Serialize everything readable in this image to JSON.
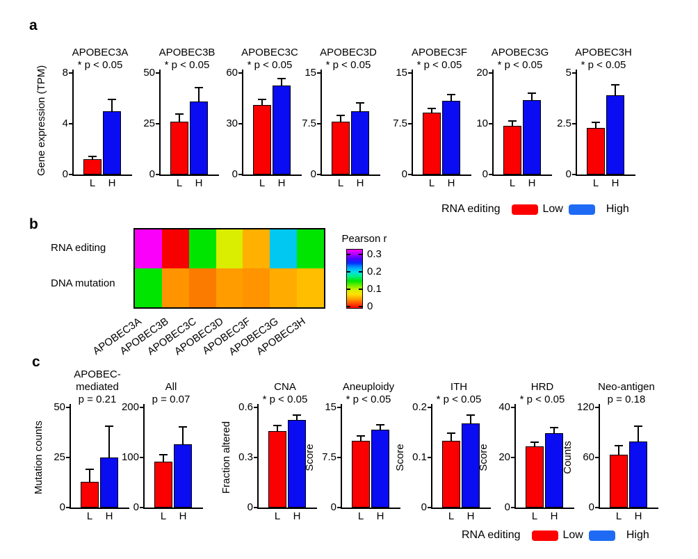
{
  "panels": {
    "a": {
      "label": "a"
    },
    "b": {
      "label": "b"
    },
    "c": {
      "label": "c"
    }
  },
  "legend": {
    "title": "RNA editing",
    "low_label": "Low",
    "high_label": "High",
    "low_color": "#ff0000",
    "high_color": "#1e6af5"
  },
  "colors": {
    "bar_low": "#fb0000",
    "bar_high": "#0a0cf2"
  },
  "chart_data": [
    {
      "panel": "a",
      "type": "bar",
      "title": "APOBEC3A",
      "subtitle": "* p < 0.05",
      "ylabel": "Gene expression (TPM)",
      "categories": [
        "L",
        "H"
      ],
      "values": [
        1.2,
        5.0
      ],
      "errors": [
        0.3,
        1.0
      ],
      "ylim": [
        0,
        8
      ],
      "yticks": [
        0,
        4,
        8
      ]
    },
    {
      "panel": "a",
      "type": "bar",
      "title": "APOBEC3B",
      "subtitle": "* p < 0.05",
      "ylabel": "",
      "categories": [
        "L",
        "H"
      ],
      "values": [
        26,
        36
      ],
      "errors": [
        4,
        7
      ],
      "ylim": [
        0,
        50
      ],
      "yticks": [
        0,
        25,
        50
      ]
    },
    {
      "panel": "a",
      "type": "bar",
      "title": "APOBEC3C",
      "subtitle": "* p < 0.05",
      "ylabel": "",
      "categories": [
        "L",
        "H"
      ],
      "values": [
        41,
        52.5
      ],
      "errors": [
        4,
        4.5
      ],
      "ylim": [
        0,
        60
      ],
      "yticks": [
        0,
        30,
        60
      ]
    },
    {
      "panel": "a",
      "type": "bar",
      "title": "APOBEC3D",
      "subtitle": "* p < 0.05",
      "ylabel": "",
      "categories": [
        "L",
        "H"
      ],
      "values": [
        7.8,
        9.4
      ],
      "errors": [
        1.0,
        1.3
      ],
      "ylim": [
        0,
        15
      ],
      "yticks": [
        0,
        7.5,
        15
      ]
    },
    {
      "panel": "a",
      "type": "bar",
      "title": "APOBEC3F",
      "subtitle": "* p < 0.05",
      "ylabel": "",
      "categories": [
        "L",
        "H"
      ],
      "values": [
        9.1,
        10.9
      ],
      "errors": [
        0.8,
        1.0
      ],
      "ylim": [
        0,
        15
      ],
      "yticks": [
        0,
        7.5,
        15
      ]
    },
    {
      "panel": "a",
      "type": "bar",
      "title": "APOBEC3G",
      "subtitle": "* p < 0.05",
      "ylabel": "",
      "categories": [
        "L",
        "H"
      ],
      "values": [
        9.6,
        14.6
      ],
      "errors": [
        1.1,
        1.5
      ],
      "ylim": [
        0,
        20
      ],
      "yticks": [
        0,
        10,
        20
      ]
    },
    {
      "panel": "a",
      "type": "bar",
      "title": "APOBEC3H",
      "subtitle": "* p < 0.05",
      "ylabel": "",
      "categories": [
        "L",
        "H"
      ],
      "values": [
        2.3,
        3.9
      ],
      "errors": [
        0.3,
        0.55
      ],
      "ylim": [
        0,
        5
      ],
      "yticks": [
        0,
        2.5,
        5
      ]
    },
    {
      "panel": "b",
      "type": "heatmap",
      "rows": [
        "RNA editing",
        "DNA mutation"
      ],
      "columns": [
        "APOBEC3A",
        "APOBEC3B",
        "APOBEC3C",
        "APOBEC3D",
        "APOBEC3F",
        "APOBEC3G",
        "APOBEC3H"
      ],
      "values": [
        [
          0.33,
          0.0,
          0.13,
          0.095,
          0.055,
          0.21,
          0.13
        ],
        [
          0.13,
          0.045,
          0.035,
          0.05,
          0.045,
          0.055,
          0.065
        ]
      ],
      "cell_colors": [
        [
          "#fa00fa",
          "#f70000",
          "#00e500",
          "#d9ee00",
          "#ffb000",
          "#00c8f0",
          "#00e500"
        ],
        [
          "#00e500",
          "#ff9300",
          "#fb7b00",
          "#ff9d00",
          "#ff9300",
          "#ffab00",
          "#ffbf00"
        ]
      ],
      "colorbar": {
        "title": "Pearson r",
        "tick_values": [
          0.3,
          0.2,
          0.1,
          0
        ],
        "range_top": 0.33,
        "range_bottom": -0.01,
        "gradient": [
          "#ff00ff",
          "#b000ff",
          "#5000ff",
          "#0030ff",
          "#00a0ff",
          "#00e0e8",
          "#00f080",
          "#00e400",
          "#70ee00",
          "#d8f000",
          "#ffdf00",
          "#ffa000",
          "#ff4d00",
          "#ff0000"
        ]
      }
    },
    {
      "panel": "c",
      "type": "bar",
      "title": "APOBEC-\nmediated",
      "subtitle": "p = 0.21",
      "ylabel": "Mutation counts",
      "categories": [
        "L",
        "H"
      ],
      "values": [
        13,
        25
      ],
      "errors": [
        6.5,
        16
      ],
      "ylim": [
        0,
        50
      ],
      "yticks": [
        0,
        25,
        50
      ]
    },
    {
      "panel": "c",
      "type": "bar",
      "title": "All",
      "subtitle": "p = 0.07",
      "ylabel": "",
      "categories": [
        "L",
        "H"
      ],
      "values": [
        91,
        127
      ],
      "errors": [
        16,
        36
      ],
      "ylim": [
        0,
        200
      ],
      "yticks": [
        0,
        100,
        200
      ]
    },
    {
      "panel": "c",
      "type": "bar",
      "title": "CNA",
      "subtitle": "* p < 0.05",
      "ylabel": "Fraction altered",
      "categories": [
        "L",
        "H"
      ],
      "values": [
        0.46,
        0.525
      ],
      "errors": [
        0.035,
        0.033
      ],
      "ylim": [
        0,
        0.6
      ],
      "yticks": [
        0,
        0.3,
        0.6
      ]
    },
    {
      "panel": "c",
      "type": "bar",
      "title": "Aneuploidy",
      "subtitle": "* p < 0.05",
      "ylabel": "Score",
      "categories": [
        "L",
        "H"
      ],
      "values": [
        10.0,
        11.7
      ],
      "errors": [
        0.8,
        0.8
      ],
      "ylim": [
        0,
        15
      ],
      "yticks": [
        0,
        7.5,
        15
      ]
    },
    {
      "panel": "c",
      "type": "bar",
      "title": "ITH",
      "subtitle": "* p < 0.05",
      "ylabel": "Score",
      "categories": [
        "L",
        "H"
      ],
      "values": [
        0.133,
        0.168
      ],
      "errors": [
        0.017,
        0.018
      ],
      "ylim": [
        0,
        0.2
      ],
      "yticks": [
        0,
        0.1,
        0.2
      ]
    },
    {
      "panel": "c",
      "type": "bar",
      "title": "HRD",
      "subtitle": "* p < 0.05",
      "ylabel": "Score",
      "categories": [
        "L",
        "H"
      ],
      "values": [
        24.4,
        29.6
      ],
      "errors": [
        2.0,
        2.6
      ],
      "ylim": [
        0,
        40
      ],
      "yticks": [
        0,
        20,
        40
      ]
    },
    {
      "panel": "c",
      "type": "bar",
      "title": "Neo-antigen",
      "subtitle": "p = 0.18",
      "ylabel": "Counts",
      "categories": [
        "L",
        "H"
      ],
      "values": [
        63,
        79
      ],
      "errors": [
        12,
        19
      ],
      "ylim": [
        0,
        120
      ],
      "yticks": [
        0,
        60,
        120
      ]
    }
  ]
}
